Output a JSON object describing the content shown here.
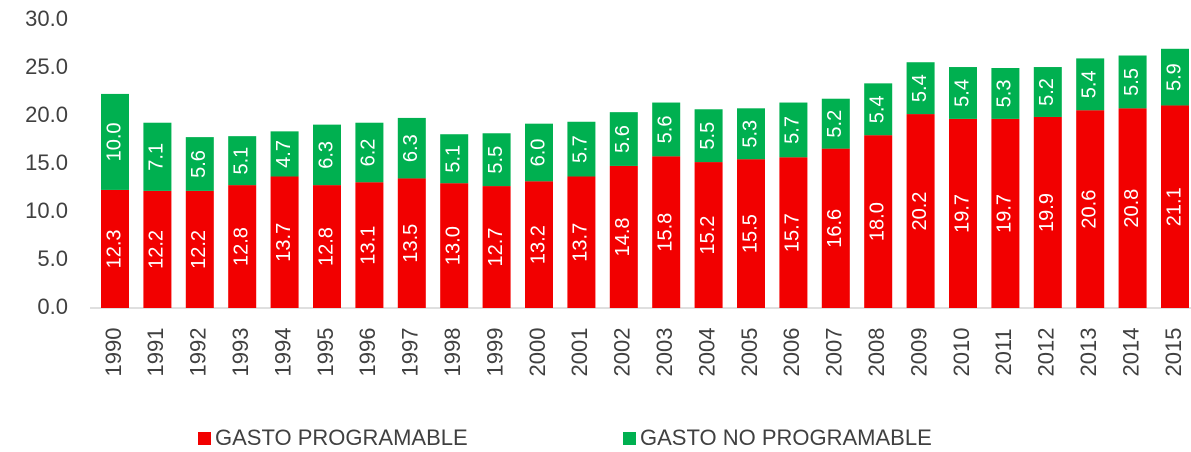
{
  "chart_data": {
    "type": "stacked_bar",
    "categories": [
      "1990",
      "1991",
      "1992",
      "1993",
      "1994",
      "1995",
      "1996",
      "1997",
      "1998",
      "1999",
      "2000",
      "2001",
      "2002",
      "2003",
      "2004",
      "2005",
      "2006",
      "2007",
      "2008",
      "2009",
      "2010",
      "2011",
      "2012",
      "2013",
      "2014",
      "2015"
    ],
    "series": [
      {
        "name": "GASTO PROGRAMABLE",
        "color": "#f20000",
        "values": [
          12.3,
          12.2,
          12.2,
          12.8,
          13.7,
          12.8,
          13.1,
          13.5,
          13.0,
          12.7,
          13.2,
          13.7,
          14.8,
          15.8,
          15.2,
          15.5,
          15.7,
          16.6,
          18.0,
          20.2,
          19.7,
          19.7,
          19.9,
          20.6,
          20.8,
          21.1
        ],
        "value_labels": [
          "12.3",
          "12.2",
          "12.2",
          "12.8",
          "13.7",
          "12.8",
          "13.1",
          "13.5",
          "13.0",
          "12.7",
          "13.2",
          "13.7",
          "14.8",
          "15.8",
          "15.2",
          "15.5",
          "15.7",
          "16.6",
          "18.0",
          "20.2",
          "19.7",
          "19.7",
          "19.9",
          "20.6",
          "20.8",
          "21.1"
        ]
      },
      {
        "name": "GASTO NO PROGRAMABLE",
        "color": "#00b050",
        "values": [
          10.0,
          7.1,
          5.6,
          5.1,
          4.7,
          6.3,
          6.2,
          6.3,
          5.1,
          5.5,
          6.0,
          5.7,
          5.6,
          5.6,
          5.5,
          5.3,
          5.7,
          5.2,
          5.4,
          5.4,
          5.4,
          5.3,
          5.2,
          5.4,
          5.5,
          5.9
        ],
        "value_labels": [
          "10.0",
          "7.1",
          "5.6",
          "5.1",
          "4.7",
          "6.3",
          "6.2",
          "6.3",
          "5.1",
          "5.5",
          "6.0",
          "5.7",
          "5.6",
          "5.6",
          "5.5",
          "5.3",
          "5.7",
          "5.2",
          "5.4",
          "5.4",
          "5.4",
          "5.3",
          "5.2",
          "5.4",
          "5.5",
          "5.9"
        ]
      }
    ],
    "ylim": [
      0,
      30
    ],
    "yticks": [
      {
        "value": 0,
        "label": "0.0"
      },
      {
        "value": 5,
        "label": "5.0"
      },
      {
        "value": 10,
        "label": "10.0"
      },
      {
        "value": 15,
        "label": "15.0"
      },
      {
        "value": 20,
        "label": "20.0"
      },
      {
        "value": 25,
        "label": "25.0"
      },
      {
        "value": 30,
        "label": "30.0"
      }
    ],
    "legend": "bottom"
  }
}
